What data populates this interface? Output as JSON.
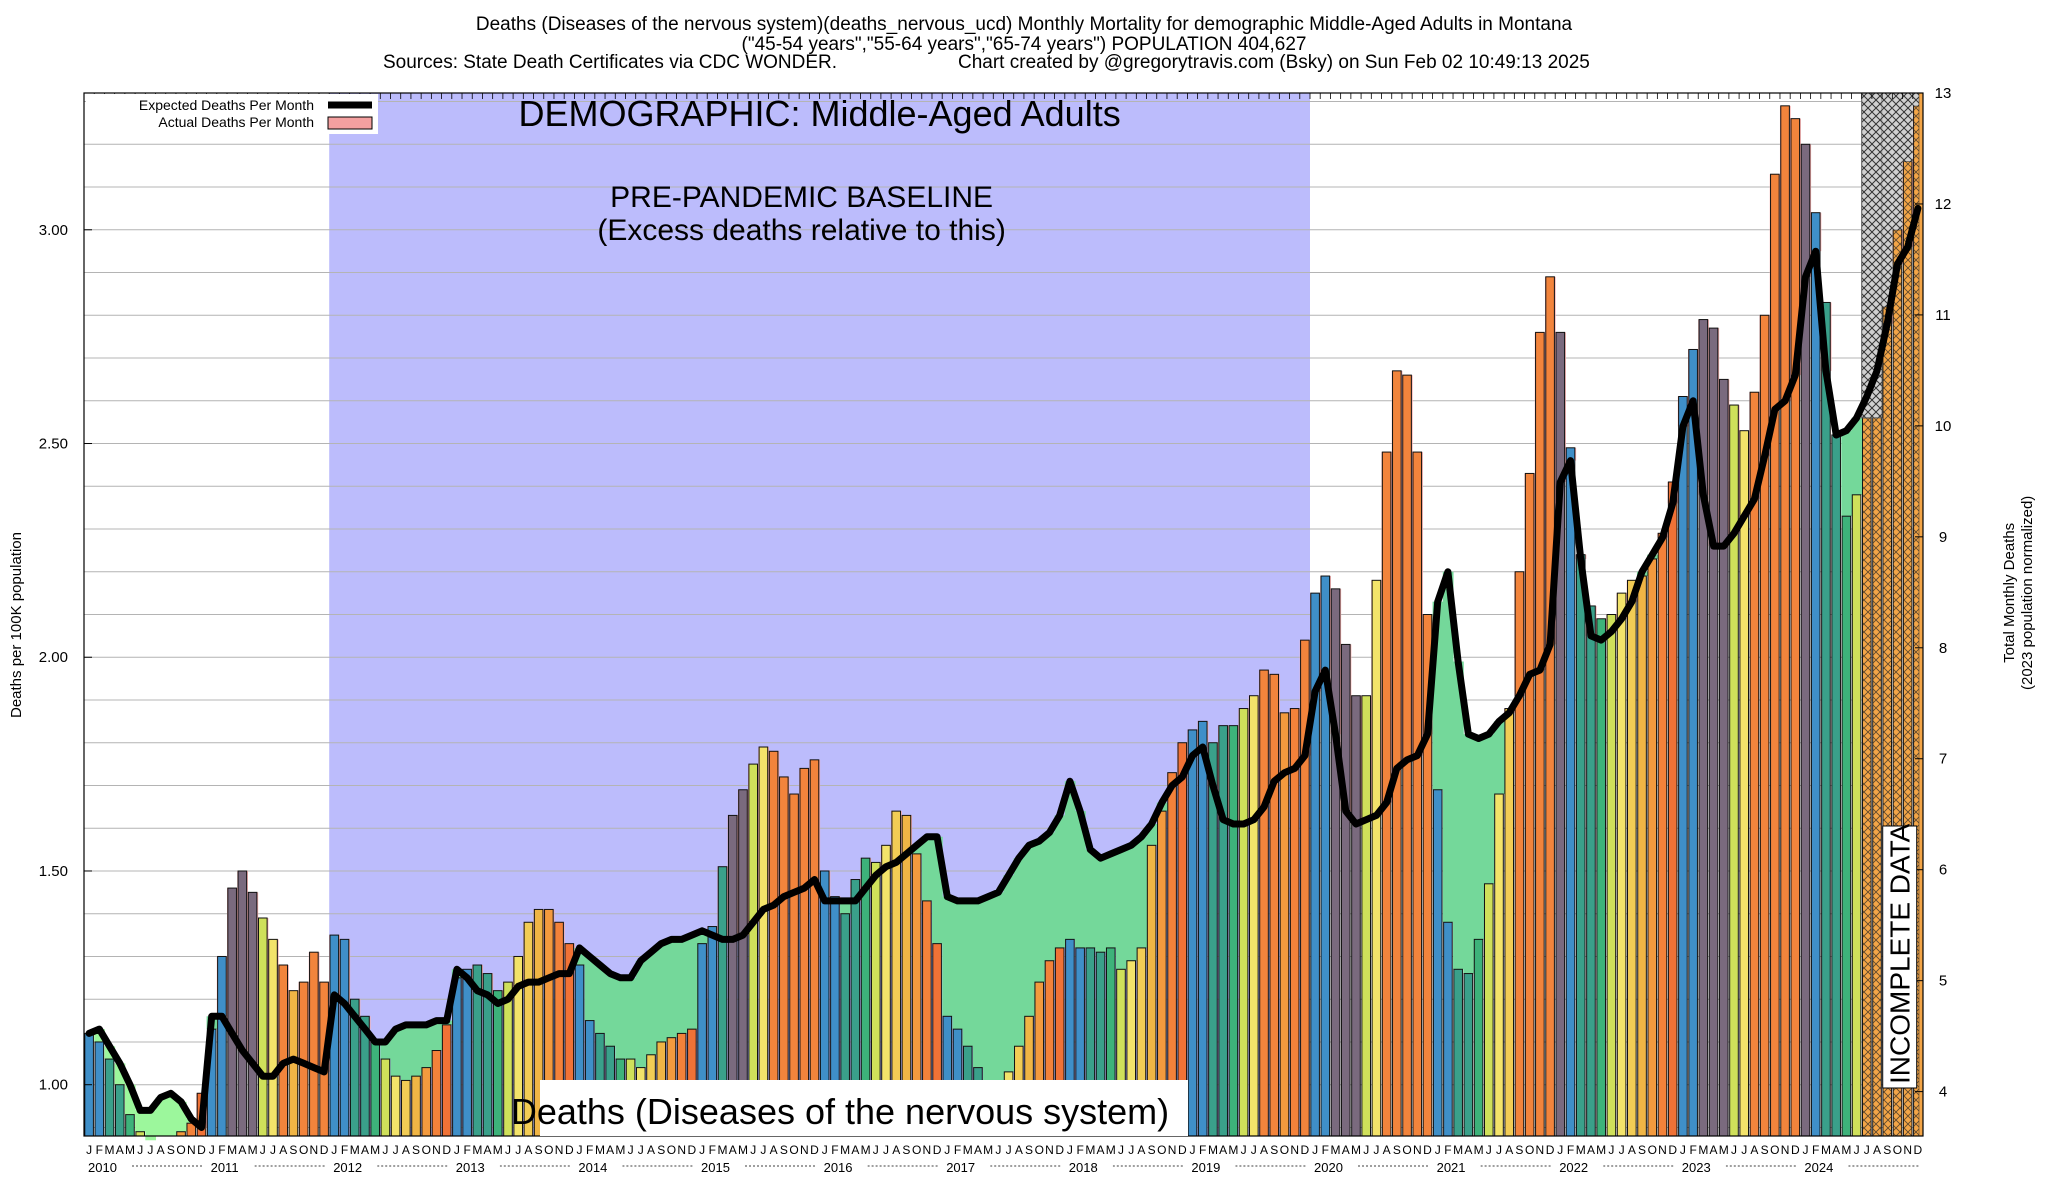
{
  "header": {
    "title_line1": "Deaths (Diseases of the nervous system)(deaths_nervous_ucd) Monthly Mortality for demographic Middle-Aged Adults in Montana",
    "title_line2": "(\"45-54 years\",\"55-64 years\",\"65-74 years\") POPULATION 404,627",
    "sources": "Sources: State Death Certificates via CDC WONDER.",
    "credit": "Chart created by @gregorytravis.com (Bsky) on Sun Feb 02 10:49:13 2025"
  },
  "chart_data": {
    "type": "bar",
    "title": "Deaths (Diseases of the nervous system)(deaths_nervous_ucd) Monthly Mortality for demographic Middle-Aged Adults in Montana",
    "ylabel": "Deaths per 100K population",
    "y2label_line1": "Total Monthly Deaths",
    "y2label_line2": "(2023 population normalized)",
    "ylim": [
      0.88,
      3.32
    ],
    "y2lim": [
      3.6,
      13.0
    ],
    "yticks": [
      "1.00",
      "1.50",
      "2.00",
      "2.50",
      "3.00"
    ],
    "y2ticks": [
      "4",
      "5",
      "6",
      "7",
      "8",
      "9",
      "10",
      "11",
      "12",
      "13"
    ],
    "month_letters": [
      "J",
      "F",
      "M",
      "A",
      "M",
      "J",
      "J",
      "A",
      "S",
      "O",
      "N",
      "D"
    ],
    "years": [
      "2010",
      "2011",
      "2012",
      "2013",
      "2014",
      "2015",
      "2016",
      "2017",
      "2018",
      "2019",
      "2020",
      "2021",
      "2022",
      "2023",
      "2024"
    ],
    "start": "2010-01",
    "legend": {
      "placement": "top-left",
      "entries": [
        {
          "name": "Expected Deaths Per Month",
          "color": "#000000"
        },
        {
          "name": "Actual Deaths Per Month",
          "color": "#f4a0a0"
        }
      ]
    },
    "annotations": {
      "demographic": "DEMOGRAPHIC: Middle-Aged Adults",
      "baseline_line1": "PRE-PANDEMIC BASELINE",
      "baseline_line2": "(Excess deaths relative to this)",
      "cause_label": "Deaths (Diseases of the nervous system)",
      "incomplete": "INCOMPLETE DATA"
    },
    "baseline_period": [
      "2012-01",
      "2019-12"
    ],
    "incomplete_period": [
      "2024-07",
      "2024-12"
    ],
    "series": [
      {
        "name": "Actual Deaths Per Month",
        "values": [
          1.12,
          1.1,
          1.06,
          1.0,
          0.93,
          0.89,
          0.87,
          0.88,
          0.88,
          0.89,
          0.91,
          0.98,
          1.13,
          1.3,
          1.46,
          1.5,
          1.45,
          1.39,
          1.34,
          1.28,
          1.22,
          1.24,
          1.31,
          1.24,
          1.35,
          1.34,
          1.2,
          1.16,
          1.1,
          1.06,
          1.02,
          1.01,
          1.02,
          1.04,
          1.08,
          1.14,
          1.25,
          1.27,
          1.28,
          1.26,
          1.22,
          1.24,
          1.3,
          1.38,
          1.41,
          1.41,
          1.38,
          1.33,
          1.28,
          1.15,
          1.12,
          1.09,
          1.06,
          1.06,
          1.04,
          1.07,
          1.1,
          1.11,
          1.12,
          1.13,
          1.33,
          1.37,
          1.51,
          1.63,
          1.69,
          1.75,
          1.79,
          1.78,
          1.72,
          1.68,
          1.74,
          1.76,
          1.5,
          1.44,
          1.4,
          1.48,
          1.53,
          1.52,
          1.56,
          1.64,
          1.63,
          1.54,
          1.43,
          1.33,
          1.16,
          1.13,
          1.09,
          1.04,
          1.0,
          1.0,
          1.03,
          1.09,
          1.16,
          1.24,
          1.29,
          1.32,
          1.34,
          1.32,
          1.32,
          1.31,
          1.32,
          1.27,
          1.29,
          1.32,
          1.56,
          1.64,
          1.73,
          1.8,
          1.83,
          1.85,
          1.8,
          1.84,
          1.84,
          1.88,
          1.91,
          1.97,
          1.96,
          1.87,
          1.88,
          2.04,
          2.15,
          2.19,
          2.16,
          2.03,
          1.91,
          1.91,
          2.18,
          2.48,
          2.67,
          2.66,
          2.48,
          2.1,
          1.69,
          1.38,
          1.27,
          1.26,
          1.34,
          1.47,
          1.68,
          1.88,
          2.2,
          2.43,
          2.76,
          2.89,
          2.76,
          2.49,
          2.24,
          2.12,
          2.09,
          2.1,
          2.15,
          2.18,
          2.19,
          2.23,
          2.29,
          2.41,
          2.61,
          2.72,
          2.79,
          2.77,
          2.65,
          2.59,
          2.53,
          2.62,
          2.8,
          3.13,
          3.29,
          3.26,
          3.2,
          3.04,
          2.83,
          2.52,
          2.33,
          2.38,
          2.56,
          2.72,
          2.82,
          3.0,
          3.16,
          3.29
        ]
      },
      {
        "name": "Expected Deaths Per Month",
        "values": [
          1.12,
          1.13,
          1.09,
          1.05,
          1.0,
          0.94,
          0.94,
          0.97,
          0.98,
          0.96,
          0.92,
          0.9,
          1.16,
          1.16,
          1.12,
          1.08,
          1.05,
          1.02,
          1.02,
          1.05,
          1.06,
          1.05,
          1.04,
          1.03,
          1.21,
          1.19,
          1.16,
          1.13,
          1.1,
          1.1,
          1.13,
          1.14,
          1.14,
          1.14,
          1.15,
          1.15,
          1.27,
          1.25,
          1.22,
          1.21,
          1.19,
          1.2,
          1.23,
          1.24,
          1.24,
          1.25,
          1.26,
          1.26,
          1.32,
          1.3,
          1.28,
          1.26,
          1.25,
          1.25,
          1.29,
          1.31,
          1.33,
          1.34,
          1.34,
          1.35,
          1.36,
          1.35,
          1.34,
          1.34,
          1.35,
          1.38,
          1.41,
          1.42,
          1.44,
          1.45,
          1.46,
          1.48,
          1.43,
          1.43,
          1.43,
          1.43,
          1.46,
          1.49,
          1.51,
          1.52,
          1.54,
          1.56,
          1.58,
          1.58,
          1.44,
          1.43,
          1.43,
          1.43,
          1.44,
          1.45,
          1.49,
          1.53,
          1.56,
          1.57,
          1.59,
          1.63,
          1.71,
          1.64,
          1.55,
          1.53,
          1.54,
          1.55,
          1.56,
          1.58,
          1.61,
          1.66,
          1.7,
          1.72,
          1.77,
          1.79,
          1.7,
          1.62,
          1.61,
          1.61,
          1.62,
          1.65,
          1.71,
          1.73,
          1.74,
          1.77,
          1.92,
          1.97,
          1.82,
          1.64,
          1.61,
          1.62,
          1.63,
          1.66,
          1.74,
          1.76,
          1.77,
          1.82,
          2.13,
          2.2,
          1.99,
          1.82,
          1.81,
          1.82,
          1.85,
          1.87,
          1.91,
          1.96,
          1.97,
          2.03,
          2.41,
          2.46,
          2.23,
          2.05,
          2.04,
          2.06,
          2.09,
          2.13,
          2.2,
          2.24,
          2.28,
          2.36,
          2.54,
          2.6,
          2.38,
          2.26,
          2.26,
          2.29,
          2.33,
          2.37,
          2.47,
          2.58,
          2.6,
          2.66,
          2.89,
          2.95,
          2.67,
          2.52,
          2.53,
          2.56,
          2.61,
          2.67,
          2.78,
          2.92,
          2.96,
          3.05
        ]
      }
    ]
  }
}
